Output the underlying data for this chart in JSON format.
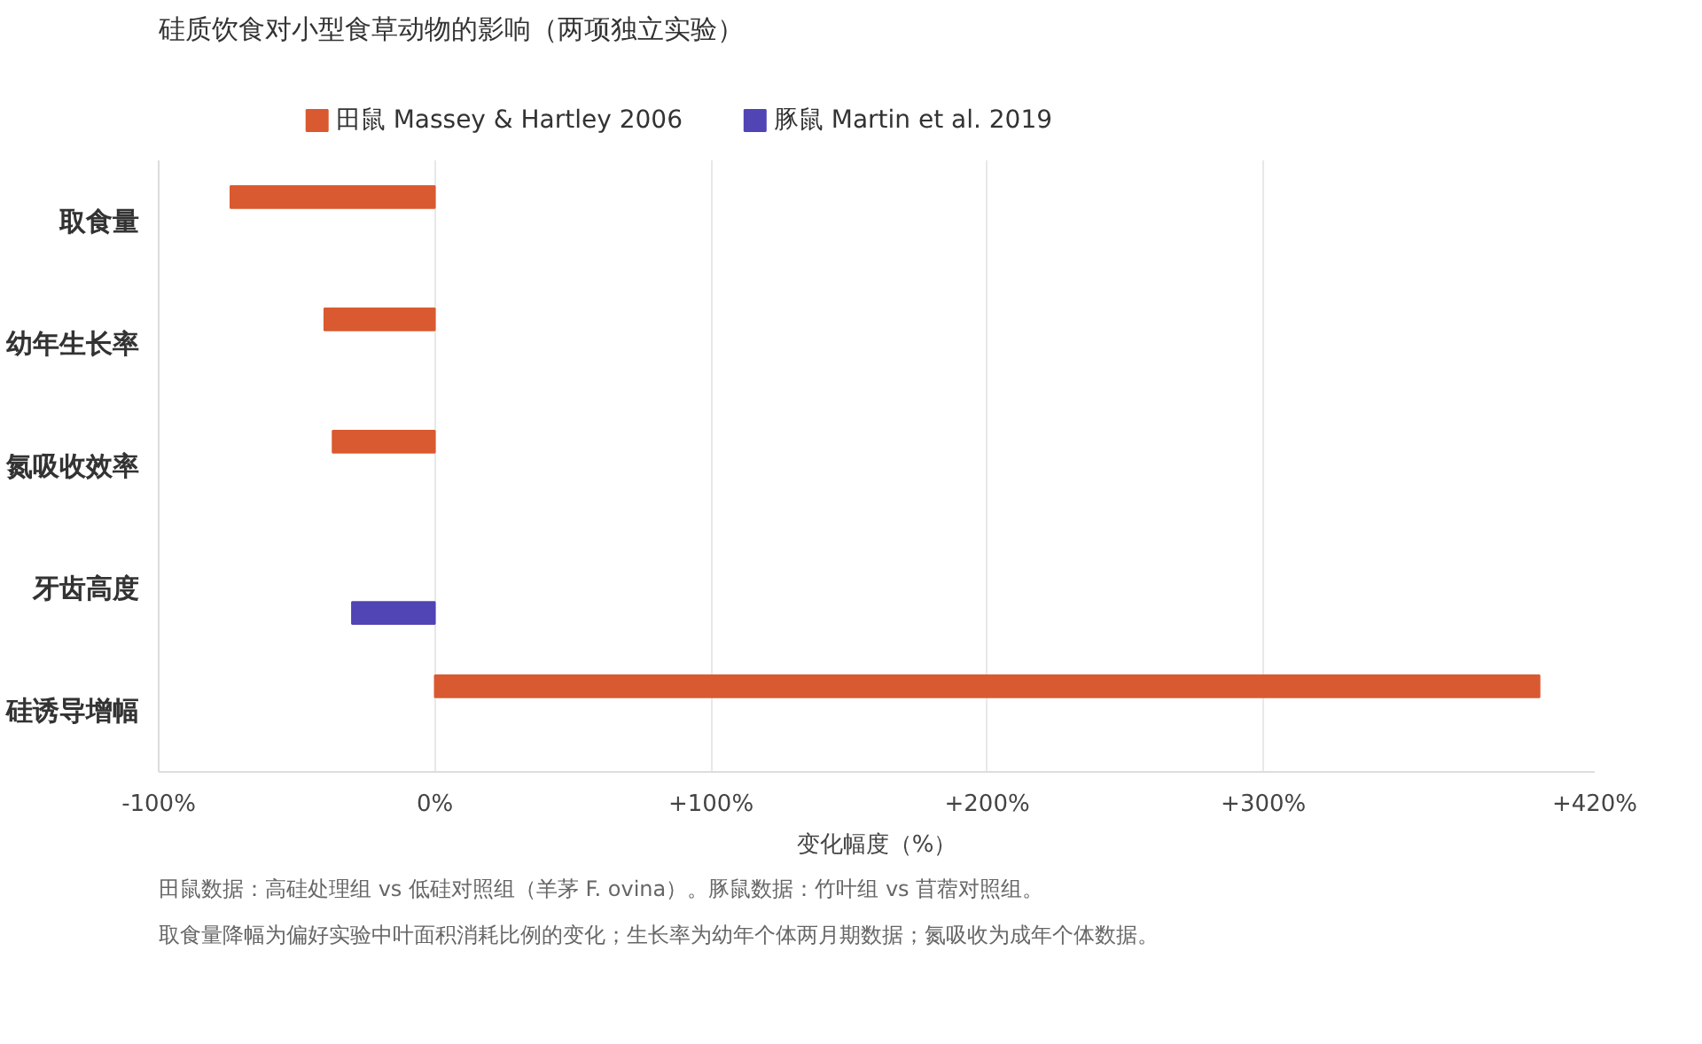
{
  "chart_data": {
    "type": "bar",
    "orientation": "horizontal",
    "title": "硅质饮食对小型食草动物的影响（两项独立实验）",
    "xlabel": "变化幅度（%）",
    "categories": [
      "取食量",
      "幼年生长率",
      "氮吸收效率",
      "牙齿高度",
      "硅诱导增幅"
    ],
    "series": [
      {
        "name": "田鼠 Massey & Hartley 2006",
        "color": "#d95a30",
        "values": [
          -74,
          -40,
          -37,
          null,
          400
        ]
      },
      {
        "name": "豚鼠 Martin et al. 2019",
        "color": "#5144b4",
        "values": [
          null,
          null,
          null,
          -30,
          null
        ]
      }
    ],
    "xlim": [
      -100,
      420
    ],
    "xticks": [
      {
        "value": -100,
        "label": "-100%"
      },
      {
        "value": 0,
        "label": "0%"
      },
      {
        "value": 100,
        "label": "+100%"
      },
      {
        "value": 200,
        "label": "+200%"
      },
      {
        "value": 300,
        "label": "+300%"
      },
      {
        "value": 420,
        "label": "+420%"
      }
    ],
    "grid": "x",
    "legend": "top",
    "annotations": [
      "田鼠数据：高硅处理组 vs 低硅对照组（羊茅 F. ovina）。豚鼠数据：竹叶组 vs 苜蓿对照组。",
      "取食量降幅为偏好实验中叶面积消耗比例的变化；生长率为幼年个体两月期数据；氮吸收为成年个体数据。"
    ]
  }
}
